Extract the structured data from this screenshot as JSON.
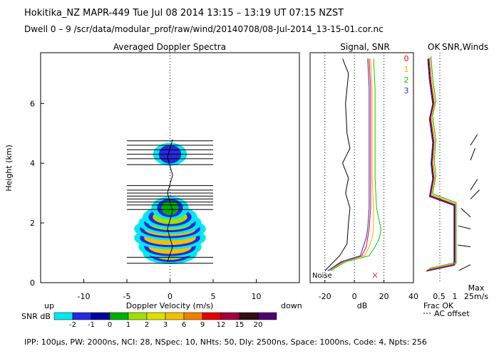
{
  "header": {
    "title": "Hokitika_NZ   MAPR-449   Tue Jul 08 2014 13:15 – 13:19 UT 07:15 NZST",
    "dwell": "Dwell  0 – 9   /scr/data/modular_prof/raw/wind/20140708/08-Jul-2014_13-15-01.cor.nc"
  },
  "footer": "IPP: 100µs,  PW: 2000ns,  NCI: 28,  NSpec: 10, NHts: 50,  Dly: 2500ns,  Space: 1000ns,  Code: 4,  Npts: 256",
  "chart_data": [
    {
      "type": "heatmap",
      "title": "Averaged Doppler Spectra",
      "xlabel": "Doppler Velocity (m/s)",
      "ylabel": "Height (km)",
      "xlim": [
        -15,
        15
      ],
      "ylim": [
        0,
        7.7
      ],
      "xticks": [
        -10,
        -5,
        0,
        5,
        10
      ],
      "yticks": [
        0,
        2,
        4,
        6
      ],
      "direction_labels": {
        "left": "up",
        "right": "down"
      },
      "snr_spectrum_bands": [
        {
          "height": 1.0,
          "vmin": -2.0,
          "vmax": 2.0,
          "peak_snr_db": 3
        },
        {
          "height": 1.2,
          "vmin": -2.5,
          "vmax": 2.5,
          "peak_snr_db": 3
        },
        {
          "height": 1.5,
          "vmin": -3.0,
          "vmax": 3.0,
          "peak_snr_db": 3
        },
        {
          "height": 1.8,
          "vmin": -3.0,
          "vmax": 3.0,
          "peak_snr_db": 3
        },
        {
          "height": 2.0,
          "vmin": -2.5,
          "vmax": 2.5,
          "peak_snr_db": 1
        },
        {
          "height": 2.2,
          "vmin": -2.0,
          "vmax": 2.0,
          "peak_snr_db": 1
        },
        {
          "height": 2.5,
          "vmin": -1.0,
          "vmax": 1.0,
          "peak_snr_db": 0
        },
        {
          "height": 4.3,
          "vmin": -0.8,
          "vmax": 0.8,
          "peak_snr_db": -2
        }
      ],
      "rejected_heights_km": [
        0.65,
        0.85,
        2.45,
        2.6,
        2.7,
        2.8,
        2.9,
        3.0,
        3.1,
        3.25,
        3.95,
        4.15,
        4.3,
        4.45,
        4.6,
        4.75
      ],
      "colorbar": {
        "label": "SNR dB",
        "ticks": [
          "-2",
          "-1",
          "0",
          "1",
          "2",
          "3",
          "6",
          "9",
          "12",
          "15",
          "20"
        ],
        "colors": [
          "#00e8f0",
          "#2828e0",
          "#0000a0",
          "#00b000",
          "#a0e000",
          "#e0e000",
          "#f0c000",
          "#f08000",
          "#e00000",
          "#a00040",
          "#301010",
          "#500070"
        ]
      }
    },
    {
      "type": "line",
      "title": "Signal, SNR",
      "xlabel": "dB",
      "xlim": [
        -30,
        40
      ],
      "ylim": [
        0,
        7.7
      ],
      "xticks": [
        -20,
        0,
        20,
        40
      ],
      "noise_label": "Noise",
      "series": [
        {
          "name": "0",
          "color": "#ff0000",
          "x": [
            -18,
            -8,
            5,
            8,
            9,
            10,
            11,
            11,
            11,
            11,
            11,
            10
          ],
          "y": [
            0.4,
            0.7,
            0.9,
            1.2,
            1.5,
            1.8,
            2.5,
            3.5,
            4.5,
            5.5,
            6.5,
            7.5
          ]
        },
        {
          "name": "1",
          "color": "#ffaa00",
          "x": [
            -17,
            -7,
            7,
            10,
            12,
            13,
            13,
            12,
            12,
            12,
            12,
            11
          ],
          "y": [
            0.4,
            0.7,
            0.9,
            1.2,
            1.5,
            1.8,
            2.5,
            3.5,
            4.5,
            5.5,
            6.5,
            7.5
          ]
        },
        {
          "name": "2",
          "color": "#00d000",
          "x": [
            -16,
            -6,
            10,
            14,
            17,
            18,
            15,
            14,
            14,
            14,
            14,
            13
          ],
          "y": [
            0.4,
            0.7,
            0.9,
            1.2,
            1.5,
            1.8,
            2.5,
            3.5,
            4.5,
            5.5,
            6.5,
            7.5
          ]
        },
        {
          "name": "3",
          "color": "#2222ff",
          "x": [
            -18,
            -9,
            4,
            6,
            8,
            9,
            10,
            10,
            10,
            10,
            10,
            9
          ],
          "y": [
            0.4,
            0.7,
            0.9,
            1.2,
            1.5,
            1.8,
            2.5,
            3.5,
            4.5,
            5.5,
            6.5,
            7.5
          ]
        },
        {
          "name": "noise",
          "color": "#000000",
          "x": [
            -20,
            -10,
            -5,
            -4,
            -3,
            -6,
            -4,
            -8,
            -3,
            -5,
            -6,
            -4,
            -8
          ],
          "y": [
            0.4,
            0.9,
            1.3,
            2.0,
            2.5,
            3.0,
            3.5,
            4.0,
            4.5,
            5.0,
            6.0,
            7.0,
            7.5
          ]
        }
      ]
    },
    {
      "type": "line",
      "title": "SNR,Winds",
      "ok_label": "OK",
      "xlabel": "Frac OK",
      "xlim": [
        0,
        1
      ],
      "xticks": [
        "0.5",
        "1"
      ],
      "ac_offset_label": "AC offset",
      "wind_scale_label": "Max\n25m/s",
      "series": [
        {
          "name": "frac_ok",
          "color": "#000000",
          "x": [
            0.1,
            0.95,
            0.95,
            0.95,
            0.2,
            0.3,
            0.25,
            0.3,
            0.2,
            0.3,
            0.2,
            0.15
          ],
          "y": [
            0.4,
            0.6,
            1.5,
            2.6,
            2.9,
            3.5,
            4.0,
            4.7,
            5.5,
            6.0,
            6.8,
            7.5
          ]
        }
      ]
    }
  ]
}
